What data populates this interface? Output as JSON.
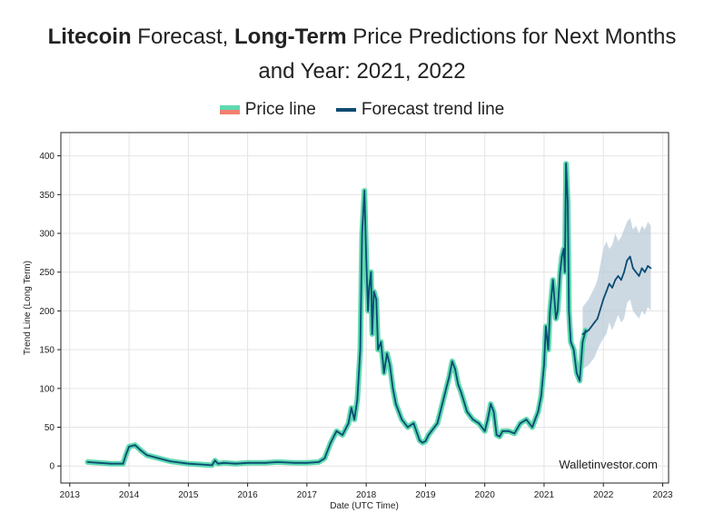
{
  "page": {
    "title": {
      "part1_bold": "Litecoin",
      "part2": " Forecast, ",
      "part3_bold": "Long-Term",
      "part4": " Price Predictions for Next Months",
      "line2": "and Year: 2021, 2022"
    }
  },
  "chart_data": {
    "type": "line",
    "title": "Litecoin Forecast, Long-Term Price Predictions for Next Months and Year: 2021, 2022",
    "xlabel": "Date (UTC Time)",
    "ylabel": "Trend Line (Long Term)",
    "xlim": [
      2012.85,
      2023.1
    ],
    "ylim": [
      -22,
      430
    ],
    "x_ticks": [
      2013,
      2014,
      2015,
      2016,
      2017,
      2018,
      2019,
      2020,
      2021,
      2022,
      2023
    ],
    "x_tick_labels": [
      "2013",
      "2014",
      "2015",
      "2016",
      "2017",
      "2018",
      "2019",
      "2020",
      "2021",
      "2022",
      "2023"
    ],
    "y_ticks": [
      0,
      50,
      100,
      150,
      200,
      250,
      300,
      350,
      400
    ],
    "y_tick_labels": [
      "0",
      "50",
      "100",
      "150",
      "200",
      "250",
      "300",
      "350",
      "400"
    ],
    "grid": true,
    "legend_position": "top-center",
    "watermark": "Walletinvestor.com",
    "colors": {
      "price_line": "#5ed9b0",
      "price_line_alt": "#f08070",
      "trend_line": "#0b4b73",
      "confidence_band": "#b6c9d6"
    },
    "series": [
      {
        "name": "Price line",
        "x": [
          2013.3,
          2013.5,
          2013.7,
          2013.9,
          2013.95,
          2014.0,
          2014.1,
          2014.2,
          2014.3,
          2014.5,
          2014.7,
          2015.0,
          2015.2,
          2015.4,
          2015.45,
          2015.5,
          2015.6,
          2015.8,
          2016.0,
          2016.3,
          2016.5,
          2016.8,
          2017.0,
          2017.2,
          2017.3,
          2017.4,
          2017.5,
          2017.6,
          2017.7,
          2017.75,
          2017.8,
          2017.85,
          2017.9,
          2017.93,
          2017.97,
          2018.0,
          2018.03,
          2018.05,
          2018.08,
          2018.1,
          2018.13,
          2018.17,
          2018.2,
          2018.25,
          2018.3,
          2018.35,
          2018.4,
          2018.45,
          2018.5,
          2018.6,
          2018.7,
          2018.8,
          2018.9,
          2018.95,
          2019.0,
          2019.05,
          2019.1,
          2019.2,
          2019.3,
          2019.35,
          2019.4,
          2019.45,
          2019.5,
          2019.55,
          2019.6,
          2019.7,
          2019.8,
          2019.9,
          2020.0,
          2020.05,
          2020.1,
          2020.15,
          2020.2,
          2020.25,
          2020.3,
          2020.4,
          2020.5,
          2020.6,
          2020.7,
          2020.8,
          2020.9,
          2020.95,
          2021.0,
          2021.03,
          2021.07,
          2021.1,
          2021.15,
          2021.2,
          2021.23,
          2021.27,
          2021.3,
          2021.33,
          2021.35,
          2021.37,
          2021.4,
          2021.42,
          2021.45,
          2021.5,
          2021.55,
          2021.6,
          2021.65,
          2021.7
        ],
        "values": [
          5,
          4,
          3,
          3,
          15,
          25,
          27,
          20,
          14,
          10,
          6,
          3,
          2,
          1,
          7,
          3,
          4,
          3,
          4,
          4,
          5,
          4,
          4,
          5,
          10,
          30,
          45,
          40,
          55,
          75,
          60,
          85,
          150,
          300,
          355,
          270,
          200,
          230,
          250,
          170,
          225,
          215,
          150,
          160,
          120,
          145,
          130,
          100,
          80,
          60,
          50,
          55,
          33,
          30,
          32,
          40,
          45,
          55,
          85,
          100,
          115,
          135,
          125,
          105,
          95,
          70,
          60,
          55,
          45,
          60,
          80,
          70,
          40,
          38,
          45,
          45,
          42,
          55,
          60,
          50,
          70,
          90,
          130,
          180,
          150,
          200,
          240,
          190,
          200,
          250,
          270,
          280,
          250,
          390,
          340,
          200,
          160,
          150,
          120,
          110,
          160,
          175
        ]
      },
      {
        "name": "Forecast trend line",
        "x": [
          2021.65,
          2021.75,
          2021.85,
          2021.9,
          2022.0,
          2022.05,
          2022.1,
          2022.15,
          2022.2,
          2022.25,
          2022.3,
          2022.35,
          2022.4,
          2022.45,
          2022.5,
          2022.55,
          2022.6,
          2022.65,
          2022.7,
          2022.75,
          2022.8
        ],
        "values": [
          170,
          175,
          185,
          190,
          215,
          225,
          235,
          230,
          240,
          245,
          240,
          250,
          265,
          270,
          255,
          250,
          245,
          255,
          250,
          258,
          255
        ],
        "upper": [
          205,
          215,
          230,
          240,
          280,
          290,
          280,
          285,
          300,
          290,
          295,
          305,
          315,
          320,
          305,
          310,
          300,
          310,
          305,
          315,
          310
        ],
        "lower": [
          125,
          130,
          140,
          150,
          165,
          170,
          185,
          175,
          185,
          195,
          185,
          190,
          210,
          215,
          200,
          195,
          190,
          200,
          195,
          205,
          200
        ]
      }
    ]
  }
}
